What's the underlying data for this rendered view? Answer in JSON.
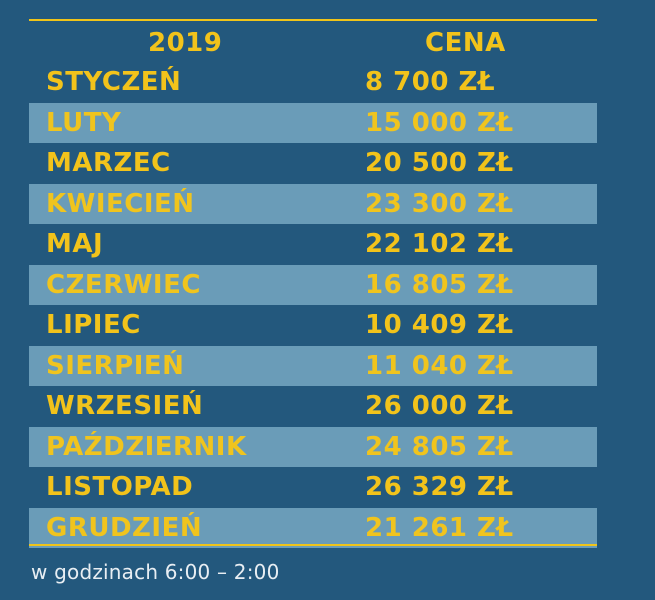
{
  "header": {
    "year": "2019",
    "price": "CENA"
  },
  "rows": [
    {
      "month": "STYCZEŃ",
      "price": "8 700 ZŁ"
    },
    {
      "month": "LUTY",
      "price": "15 000 ZŁ"
    },
    {
      "month": "MARZEC",
      "price": "20 500 ZŁ"
    },
    {
      "month": "KWIECIEŃ",
      "price": "23 300 ZŁ"
    },
    {
      "month": "MAJ",
      "price": "22 102 ZŁ"
    },
    {
      "month": "CZERWIEC",
      "price": "16 805 ZŁ"
    },
    {
      "month": "LIPIEC",
      "price": "10 409 ZŁ"
    },
    {
      "month": "SIERPIEŃ",
      "price": "11 040 ZŁ"
    },
    {
      "month": "WRZESIEŃ",
      "price": "26 000 ZŁ"
    },
    {
      "month": "PAŹDZIERNIK",
      "price": "24 805 ZŁ"
    },
    {
      "month": "LISTOPAD",
      "price": "26 329 ZŁ"
    },
    {
      "month": "GRUDZIEŃ",
      "price": "21 261 ZŁ"
    }
  ],
  "note": "w godzinach 6:00 – 2:00",
  "colors": {
    "background": "#23587d",
    "stripe": "#6a9cb8",
    "accent": "#f0c419",
    "note": "#e8eef3"
  }
}
